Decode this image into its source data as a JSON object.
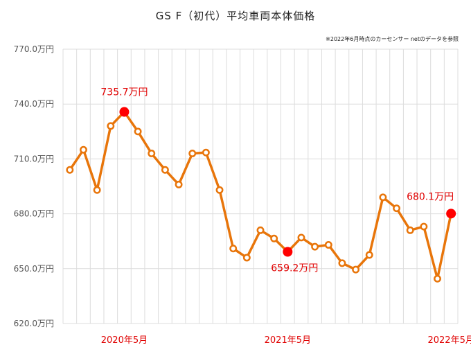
{
  "title": "GS F（初代）平均車両本体価格",
  "note": "※2022年6月時点のカーセンサー netのデータを参照",
  "chart_data": {
    "type": "line",
    "title": "GS F（初代）平均車両本体価格",
    "xlabel": "",
    "ylabel": "",
    "ylim": [
      620,
      770
    ],
    "y_ticks": [
      620,
      650,
      680,
      710,
      740,
      770
    ],
    "y_tick_labels": [
      "620.0万円",
      "650.0万円",
      "680.0万円",
      "710.0万円",
      "740.0万円",
      "770.0万円"
    ],
    "x_tick_labels": [
      {
        "index": 4,
        "label": "2020年5月"
      },
      {
        "index": 16,
        "label": "2021年5月"
      },
      {
        "index": 28,
        "label": "2022年5月"
      }
    ],
    "grid": true,
    "series": [
      {
        "values": [
          704,
          715,
          693,
          728,
          735.7,
          725,
          713,
          704,
          696,
          713,
          713.5,
          693,
          661,
          656,
          671,
          666.5,
          659.2,
          667,
          662,
          663,
          653,
          649.5,
          657.5,
          689,
          683,
          671,
          673,
          644.5,
          680.1
        ],
        "color": "#e8750a"
      }
    ],
    "highlights": [
      {
        "index": 4,
        "value": 735.7,
        "label": "735.7万円",
        "color": "#ff0000"
      },
      {
        "index": 16,
        "value": 659.2,
        "label": "659.2万円",
        "color": "#ff0000"
      },
      {
        "index": 28,
        "value": 680.1,
        "label": "680.1万円",
        "color": "#ff0000"
      }
    ]
  }
}
